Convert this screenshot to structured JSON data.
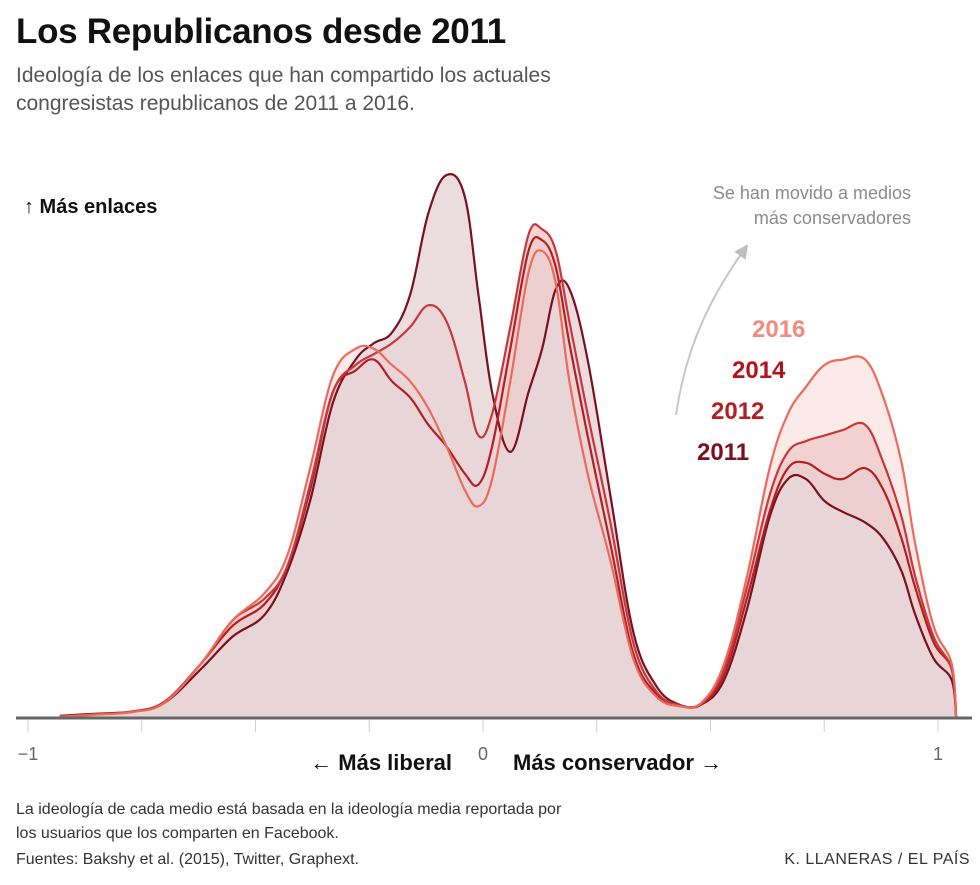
{
  "header": {
    "title": "Los Republicanos desde 2011",
    "subtitle": "Ideología de los enlaces que han compartido los actuales congresistas republicanos de 2011 a 2016."
  },
  "footer": {
    "note": "La ideología de cada medio está basada en la ideología media reportada por los usuarios que los comparten en Facebook.",
    "sources": "Fuentes: Bakshy et al. (2015), Twitter, Graphext.",
    "credit": "K. LLANERAS  /  EL PAÍS"
  },
  "chart_data": {
    "type": "area",
    "title": "Los Republicanos desde 2011",
    "ylabel": "↑ Más enlaces",
    "xlabel_left": "← Más liberal",
    "xlabel_right": "Más conservador →",
    "xlim": [
      -1.0,
      1.05
    ],
    "ylim": [
      0,
      1.0
    ],
    "x_ticks": [
      -1,
      0,
      1
    ],
    "x_tick_labels": [
      "−1",
      "0",
      "1"
    ],
    "x_minor_ticks": [
      -0.75,
      -0.5,
      -0.25,
      0.25,
      0.5,
      0.75
    ],
    "annotation": "Se han movido a medios más conservadores",
    "annotation_lines": [
      "Se han movido a medios",
      "más conservadores"
    ],
    "x": [
      -0.93,
      -0.85,
      -0.77,
      -0.7,
      -0.62,
      -0.55,
      -0.48,
      -0.43,
      -0.38,
      -0.33,
      -0.28,
      -0.24,
      -0.2,
      -0.16,
      -0.12,
      -0.08,
      -0.04,
      -0.01,
      0.02,
      0.06,
      0.1,
      0.13,
      0.16,
      0.19,
      0.23,
      0.28,
      0.33,
      0.38,
      0.43,
      0.48,
      0.53,
      0.58,
      0.63,
      0.67,
      0.71,
      0.75,
      0.79,
      0.84,
      0.88,
      0.92,
      0.95,
      0.99,
      1.03,
      1.04
    ],
    "series": [
      {
        "name": "2011",
        "color": "#7a1020",
        "fill": "#e8d6d8",
        "label_color": "#7a1020",
        "values": [
          0.004,
          0.008,
          0.012,
          0.028,
          0.09,
          0.15,
          0.19,
          0.27,
          0.4,
          0.58,
          0.66,
          0.69,
          0.71,
          0.78,
          0.93,
          1.0,
          0.96,
          0.78,
          0.6,
          0.49,
          0.6,
          0.68,
          0.79,
          0.79,
          0.66,
          0.41,
          0.16,
          0.06,
          0.025,
          0.025,
          0.07,
          0.2,
          0.37,
          0.44,
          0.44,
          0.4,
          0.38,
          0.36,
          0.33,
          0.27,
          0.19,
          0.11,
          0.07,
          0.0
        ]
      },
      {
        "name": "2012",
        "color": "#b21f24",
        "fill": "#ebcfcf",
        "label_color": "#b21f24",
        "values": [
          0.003,
          0.007,
          0.012,
          0.03,
          0.1,
          0.17,
          0.21,
          0.28,
          0.42,
          0.6,
          0.64,
          0.66,
          0.62,
          0.59,
          0.54,
          0.5,
          0.45,
          0.43,
          0.5,
          0.68,
          0.86,
          0.88,
          0.83,
          0.69,
          0.52,
          0.32,
          0.12,
          0.045,
          0.023,
          0.025,
          0.08,
          0.22,
          0.38,
          0.46,
          0.47,
          0.45,
          0.44,
          0.46,
          0.42,
          0.33,
          0.24,
          0.14,
          0.09,
          0.0
        ]
      },
      {
        "name": "2014",
        "color": "#c8373a",
        "fill": "#f0cccc",
        "label_color": "#b3121a",
        "values": [
          0.003,
          0.007,
          0.012,
          0.03,
          0.1,
          0.18,
          0.22,
          0.28,
          0.43,
          0.6,
          0.65,
          0.67,
          0.69,
          0.72,
          0.76,
          0.73,
          0.62,
          0.52,
          0.56,
          0.72,
          0.89,
          0.9,
          0.86,
          0.73,
          0.56,
          0.36,
          0.14,
          0.05,
          0.024,
          0.027,
          0.09,
          0.24,
          0.41,
          0.49,
          0.51,
          0.52,
          0.53,
          0.54,
          0.47,
          0.37,
          0.26,
          0.15,
          0.09,
          0.0
        ]
      },
      {
        "name": "2016",
        "color": "#ec6a5c",
        "fill": "#fbe6e4",
        "label_color": "#f28b7f",
        "values": [
          0.002,
          0.006,
          0.011,
          0.028,
          0.1,
          0.18,
          0.23,
          0.3,
          0.46,
          0.63,
          0.68,
          0.68,
          0.65,
          0.62,
          0.57,
          0.5,
          0.42,
          0.39,
          0.44,
          0.62,
          0.82,
          0.86,
          0.8,
          0.62,
          0.45,
          0.29,
          0.11,
          0.04,
          0.022,
          0.028,
          0.1,
          0.26,
          0.46,
          0.56,
          0.61,
          0.65,
          0.66,
          0.66,
          0.59,
          0.47,
          0.32,
          0.17,
          0.1,
          0.0
        ]
      }
    ]
  }
}
